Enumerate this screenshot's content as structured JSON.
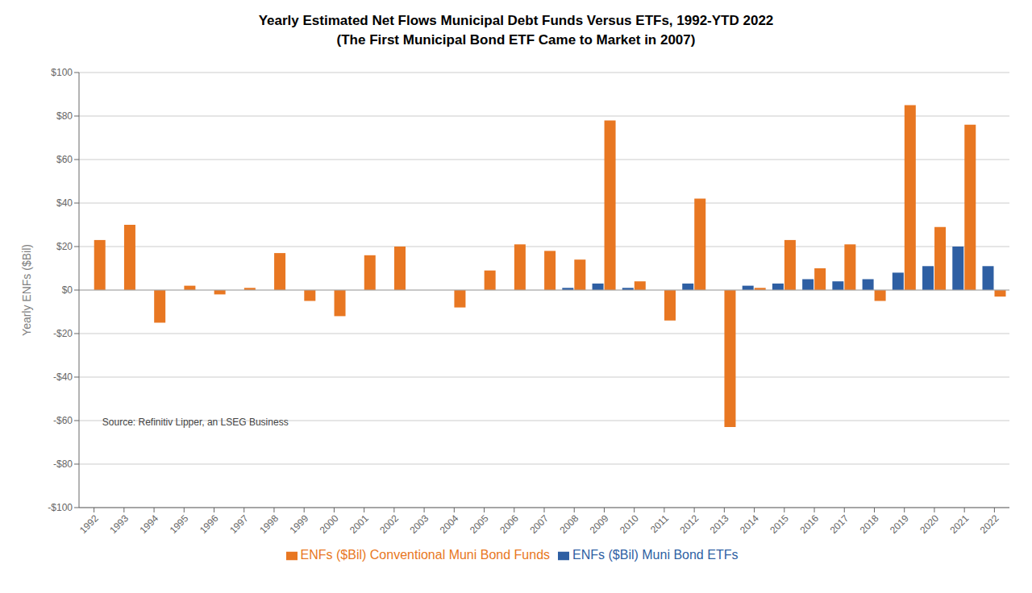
{
  "chart_data": {
    "type": "bar",
    "title": "Yearly Estimated Net Flows Municipal Debt Funds Versus ETFs, 1992-YTD 2022",
    "subtitle": "(The First Municipal Bond ETF Came to Market in 2007)",
    "y_label": "Yearly ENFs ($Bil)",
    "annotation": "Source: Refinitiv Lipper, an LSEG Business",
    "categories": [
      "1992",
      "1993",
      "1994",
      "1995",
      "1996",
      "1997",
      "1998",
      "1999",
      "2000",
      "2001",
      "2002",
      "2003",
      "2004",
      "2005",
      "2006",
      "2007",
      "2008",
      "2009",
      "2010",
      "2011",
      "2012",
      "2013",
      "2014",
      "2015",
      "2016",
      "2017",
      "2018",
      "2019",
      "2020",
      "2021",
      "2022"
    ],
    "series": [
      {
        "name": "ENFs ($Bil) Muni Bond ETFs",
        "color": "#2e5fa3",
        "values": [
          0,
          0,
          0,
          0,
          0,
          0,
          0,
          0,
          0,
          0,
          0,
          0,
          0,
          0,
          0,
          0,
          1,
          3,
          1,
          0,
          3,
          0,
          2,
          3,
          5,
          4,
          5,
          8,
          11,
          20,
          11
        ]
      },
      {
        "name": "ENFs ($Bil) Conventional Muni Bond Funds",
        "color": "#e87722",
        "values": [
          23,
          30,
          -15,
          2,
          -2,
          1,
          17,
          -5,
          -12,
          16,
          20,
          0,
          -8,
          9,
          21,
          18,
          14,
          78,
          4,
          -14,
          42,
          -63,
          1,
          23,
          10,
          21,
          -5,
          85,
          29,
          76,
          -3
        ]
      }
    ],
    "ylim": [
      -100,
      100
    ],
    "yticks": [
      {
        "value": -100,
        "label": "-$100"
      },
      {
        "value": -80,
        "label": "-$80"
      },
      {
        "value": -60,
        "label": "-$60"
      },
      {
        "value": -40,
        "label": "-$40"
      },
      {
        "value": -20,
        "label": "-$20"
      },
      {
        "value": 0,
        "label": "$0"
      },
      {
        "value": 20,
        "label": "$20"
      },
      {
        "value": 40,
        "label": "$40"
      },
      {
        "value": 60,
        "label": "$60"
      },
      {
        "value": 80,
        "label": "$80"
      },
      {
        "value": 100,
        "label": "$100"
      }
    ],
    "grid": true,
    "legend": "bottom"
  }
}
